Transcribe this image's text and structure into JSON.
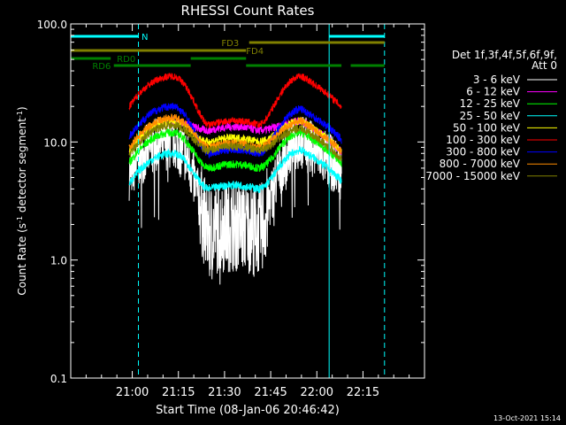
{
  "chart_data": {
    "type": "line",
    "title": "RHESSI Count Rates",
    "xlabel": "Start Time (08-Jan-06 20:46:42)",
    "ylabel_parts": [
      "Count Rate (s",
      "-1",
      " detector segment",
      "-1",
      ")"
    ],
    "yscale": "log",
    "ylim": [
      0.1,
      100.0
    ],
    "xlim_min": [
      -5,
      110
    ],
    "xtick_minutes": [
      15,
      30,
      45,
      60,
      75,
      90
    ],
    "xtick_labels": [
      "21:00",
      "21:15",
      "21:30",
      "21:45",
      "22:00",
      "22:15"
    ],
    "ytick_values": [
      0.1,
      1.0,
      10.0,
      100.0
    ],
    "ytick_labels": [
      "0.1",
      "1.0",
      "10.0",
      "100.0"
    ],
    "legend_header": [
      "Det 1f,3f,4f,5f,6f,9f,",
      "Att 0"
    ],
    "x_time_unit": "minutes after 20:46:42",
    "series": [
      {
        "name": "3 - 6 keV",
        "color": "#ffffff",
        "peak1": 10,
        "peak2": 10,
        "valley": 1.8,
        "noise": 0.55
      },
      {
        "name": "6 - 12 keV",
        "color": "#ff00ff",
        "peak1": 15,
        "peak2": 15,
        "valley": 12.5,
        "noise": 0.08
      },
      {
        "name": "12 - 25 keV",
        "color": "#00ff00",
        "peak1": 12,
        "peak2": 12,
        "valley": 6,
        "noise": 0.08
      },
      {
        "name": "25 - 50 keV",
        "color": "#00ffff",
        "peak1": 8,
        "peak2": 8.5,
        "valley": 4,
        "noise": 0.08
      },
      {
        "name": "50 - 100 keV",
        "color": "#ffff00",
        "peak1": 15,
        "peak2": 15,
        "valley": 10,
        "noise": 0.08
      },
      {
        "name": "100 - 300 keV",
        "color": "#ff0000",
        "peak1": 36,
        "peak2": 36,
        "valley": 14,
        "noise": 0.07
      },
      {
        "name": "300 - 800 keV",
        "color": "#0000ff",
        "peak1": 20,
        "peak2": 19,
        "valley": 8,
        "noise": 0.08
      },
      {
        "name": "800 - 7000 keV",
        "color": "#ff8c00",
        "peak1": 16,
        "peak2": 15,
        "valley": 9,
        "noise": 0.08
      },
      {
        "name": "7000 - 15000 keV",
        "color": "#808000",
        "peak1": 14,
        "peak2": 13,
        "valley": 8.5,
        "noise": 0.08
      }
    ],
    "data_span_minutes": [
      14,
      83
    ],
    "peak_times_minutes": [
      28,
      70
    ],
    "valley_span_minutes": [
      40,
      56
    ],
    "eclipse_lines_minutes": [
      -5,
      79
    ],
    "saa_lines_minutes": [
      17,
      97
    ],
    "annotations": [
      {
        "label": "N",
        "color": "#00ffff",
        "segments": [
          [
            -5,
            17
          ],
          [
            79,
            97
          ]
        ],
        "label_at": 18
      },
      {
        "label": "FD3",
        "color": "#808000",
        "segments": [
          [
            53,
            97
          ]
        ],
        "label_at": 44
      },
      {
        "label": "FD4",
        "color": "#808000",
        "segments": [
          [
            -5,
            52
          ]
        ],
        "label_at": 52
      },
      {
        "label": "RD0",
        "color": "#008000",
        "segments": [
          [
            -5,
            8
          ],
          [
            34,
            52
          ]
        ],
        "label_at": 10
      },
      {
        "label": "RD6",
        "color": "#008000",
        "segments": [
          [
            9,
            34
          ],
          [
            52,
            83
          ],
          [
            86,
            97
          ]
        ],
        "label_at": 2
      }
    ],
    "footer_date": "13-Oct-2021 15:14"
  }
}
